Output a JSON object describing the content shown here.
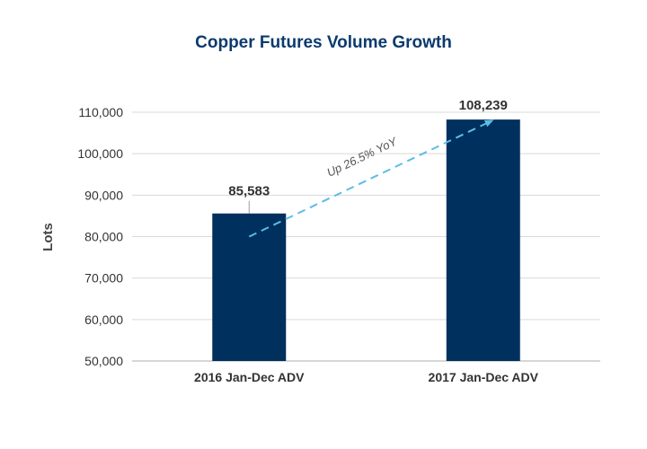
{
  "chart_data": {
    "type": "bar",
    "title": "Copper Futures Volume Growth",
    "ylabel": "Lots",
    "xlabel": "",
    "categories": [
      "2016 Jan-Dec ADV",
      "2017 Jan-Dec ADV"
    ],
    "values": [
      85583,
      108239
    ],
    "value_labels": [
      "85,583",
      "108,239"
    ],
    "ylim": [
      50000,
      110000
    ],
    "yticks": [
      50000,
      60000,
      70000,
      80000,
      90000,
      100000,
      110000
    ],
    "ytick_labels": [
      "50,000",
      "60,000",
      "70,000",
      "80,000",
      "90,000",
      "100,000",
      "110,000"
    ],
    "grid": true,
    "annotation": {
      "text": "Up 26.5% YoY",
      "from": {
        "category": "2016 Jan-Dec ADV",
        "value": 80000
      },
      "to": {
        "category": "2017 Jan-Dec ADV",
        "value": 108000
      }
    },
    "colors": {
      "bar": "#00305e",
      "arrow": "#5bbde6",
      "title": "#0b3a6e"
    }
  }
}
